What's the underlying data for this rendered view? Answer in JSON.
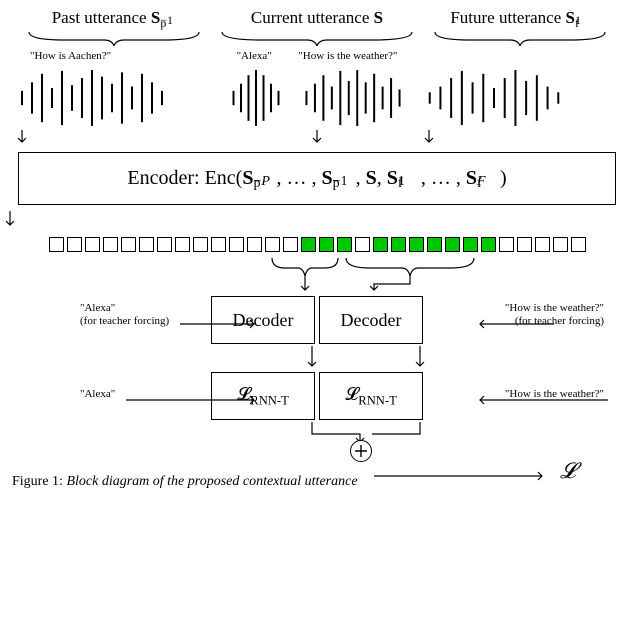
{
  "utterances": {
    "past": {
      "title_html": "Past utterance <b>S</b>",
      "super": "p",
      "sub": "−1",
      "text": "\"How is Aachen?\""
    },
    "current": {
      "title_html": "Current utterance <b>S</b>",
      "text_left": "\"Alexa\"",
      "text_right": "\"How is the weather?\""
    },
    "future": {
      "title_html": "Future utterance <b>S</b>",
      "super": "f",
      "sub": "1"
    }
  },
  "waveforms": {
    "past": {
      "bars": [
        0.25,
        0.55,
        0.85,
        0.35,
        0.95,
        0.45,
        0.7,
        0.98,
        0.75,
        0.5,
        0.9,
        0.4,
        0.85,
        0.55,
        0.25
      ],
      "stroke": "#000000"
    },
    "currentA": {
      "bars": [
        0.25,
        0.5,
        0.8,
        0.98,
        0.8,
        0.5,
        0.25
      ],
      "stroke": "#000000"
    },
    "currentB": {
      "bars": [
        0.25,
        0.5,
        0.8,
        0.4,
        0.95,
        0.6,
        0.98,
        0.55,
        0.85,
        0.4,
        0.7,
        0.3
      ],
      "stroke": "#000000"
    },
    "future": {
      "bars": [
        0.2,
        0.4,
        0.7,
        0.95,
        0.55,
        0.85,
        0.35,
        0.7,
        0.98,
        0.6,
        0.8,
        0.4,
        0.2
      ],
      "stroke": "#000000"
    }
  },
  "encoder": {
    "label_html": "Encoder: Enc(<b>S</b><span class='subsup'><span class='t'>p</span><span class='b'>−<i>P</i></span></span> , … , <b>S</b><span class='subsup'><span class='t'>p</span><span class='b'>−1</span></span> , <b>S</b>, <b>S</b><span class='subsup'><span class='t'>f</span><span class='b'>1</span></span> , … , <b>S</b><span class='subsup'><span class='t'>f</span><span class='b'><i>F</i></span></span> )"
  },
  "squares": {
    "count": 30,
    "active_indices": [
      14,
      15,
      16,
      18,
      19,
      20,
      21,
      22,
      23,
      24
    ],
    "color_on": "#00c800",
    "color_off": "#ffffff",
    "border": "#000000"
  },
  "decoders": {
    "left": {
      "label": "Decoder",
      "side_top": "\"Alexa\"",
      "side_bottom": "(for teacher forcing)"
    },
    "right": {
      "label": "Decoder",
      "side_top": "\"How is the weather?\"",
      "side_bottom": "(for teacher forcing)"
    }
  },
  "losses": {
    "left": {
      "label_html": "𝓛<span class='sub'>RNN-T</span>",
      "side": "\"Alexa\""
    },
    "right": {
      "label_html": "𝓛<span class='sub'>RNN-T</span>",
      "side": "\"How is the weather?\""
    }
  },
  "combiner": {
    "symbol": "⊕",
    "final_loss": "𝓛"
  },
  "caption": {
    "prefix": "Figure 1:",
    "text": "Block diagram of the proposed contextual utterance"
  },
  "colors": {
    "bg": "#ffffff",
    "fg": "#000000",
    "accent": "#00c800"
  },
  "arrows": {
    "stroke": "#000000",
    "width": 1.2
  }
}
